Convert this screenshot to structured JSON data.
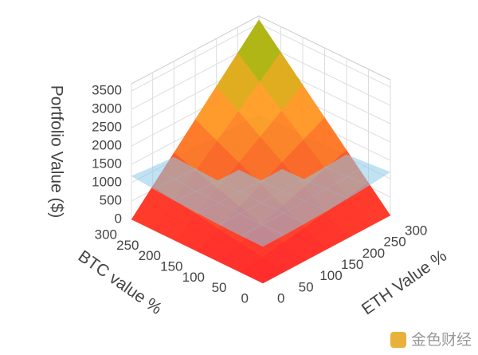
{
  "chart_data": {
    "type": "surface3d",
    "x_label": "BTC value %",
    "y_label": "ETH Value %",
    "z_label": "Portfolio Value ($)",
    "x": [
      0,
      50,
      100,
      150,
      200,
      250,
      300
    ],
    "y": [
      0,
      50,
      100,
      150,
      200,
      250,
      300
    ],
    "xlim": [
      0,
      300
    ],
    "ylim": [
      0,
      300
    ],
    "zlim": [
      0,
      3700
    ],
    "xticks": [
      0,
      50,
      100,
      150,
      200,
      250,
      300
    ],
    "yticks": [
      0,
      50,
      100,
      150,
      200,
      250,
      300
    ],
    "zticks": [
      0,
      500,
      1000,
      1500,
      2000,
      2500,
      3000,
      3500
    ],
    "grid": true,
    "surfaces": [
      {
        "colorscale": [
          [
            0,
            "#ff1a1a"
          ],
          [
            0.55,
            "#ff9a1a"
          ],
          [
            0.8,
            "#b8b400"
          ],
          [
            1,
            "#1e8a1e"
          ]
        ],
        "opacity": 0.92,
        "z": [
          [
            0,
            0,
            0,
            0,
            0,
            0,
            0
          ],
          [
            0,
            100,
            200,
            300,
            400,
            500,
            600
          ],
          [
            0,
            200,
            400,
            600,
            800,
            1000,
            1200
          ],
          [
            0,
            300,
            600,
            900,
            1200,
            1500,
            1800
          ],
          [
            0,
            400,
            800,
            1200,
            1600,
            2000,
            2400
          ],
          [
            0,
            500,
            1000,
            1500,
            2000,
            2500,
            3000
          ],
          [
            0,
            600,
            1200,
            1800,
            2400,
            3000,
            3600
          ]
        ]
      },
      {
        "colorscale": [
          [
            0,
            "#8ccbea"
          ],
          [
            1,
            "#8ccbea"
          ]
        ],
        "opacity": 0.55,
        "z": [
          [
            1000,
            1005,
            1020,
            1045,
            1080,
            1125,
            1180
          ],
          [
            1005,
            1000,
            1005,
            1020,
            1045,
            1080,
            1125
          ],
          [
            1020,
            1005,
            1000,
            1005,
            1020,
            1045,
            1080
          ],
          [
            1045,
            1020,
            1005,
            1000,
            1005,
            1020,
            1045
          ],
          [
            1080,
            1045,
            1020,
            1005,
            1000,
            1005,
            1020
          ],
          [
            1125,
            1080,
            1045,
            1020,
            1005,
            1000,
            1005
          ],
          [
            1180,
            1125,
            1080,
            1045,
            1020,
            1005,
            1000
          ]
        ]
      }
    ],
    "watermark": "金色财经"
  }
}
